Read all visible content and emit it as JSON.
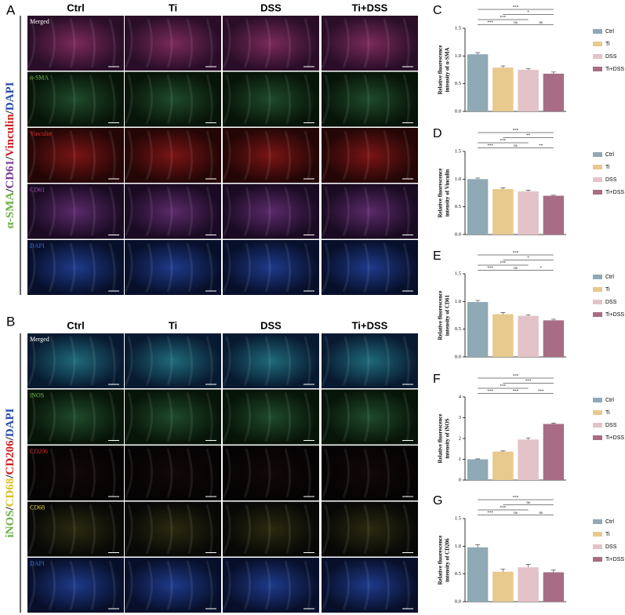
{
  "panels": [
    {
      "letter": "A",
      "columns": [
        "Ctrl",
        "Ti",
        "DSS",
        "Ti+DSS"
      ],
      "rows": [
        {
          "text": "Merged",
          "color": "#ffffff"
        },
        {
          "text": "α-SMA",
          "color": "#6fc04a"
        },
        {
          "text": "Vinculin",
          "color": "#e0302a"
        },
        {
          "text": "CD61",
          "color": "#a050b0"
        },
        {
          "text": "DAPI",
          "color": "#3a6ad0"
        }
      ],
      "side_label": [
        {
          "text": "α-SMA",
          "color": "#6aae45"
        },
        {
          "text": "/",
          "color": "#222222"
        },
        {
          "text": "CD61",
          "color": "#7a3a96"
        },
        {
          "text": "/",
          "color": "#222222"
        },
        {
          "text": "Vinculin",
          "color": "#cc1f1f"
        },
        {
          "text": "/",
          "color": "#222222"
        },
        {
          "text": "DAPI",
          "color": "#2a4ea8"
        }
      ]
    },
    {
      "letter": "B",
      "columns": [
        "Ctrl",
        "Ti",
        "DSS",
        "Ti+DSS"
      ],
      "rows": [
        {
          "text": "Merged",
          "color": "#ffffff"
        },
        {
          "text": "iNOS",
          "color": "#6fc04a"
        },
        {
          "text": "CD206",
          "color": "#e0302a"
        },
        {
          "text": "CD68",
          "color": "#e8d040"
        },
        {
          "text": "DAPI",
          "color": "#3a6ad0"
        }
      ],
      "side_label": [
        {
          "text": "iNOS",
          "color": "#6aae45"
        },
        {
          "text": "/",
          "color": "#222222"
        },
        {
          "text": "CD68",
          "color": "#d8c020"
        },
        {
          "text": "/",
          "color": "#222222"
        },
        {
          "text": "CD206",
          "color": "#cc1f1f"
        },
        {
          "text": "/",
          "color": "#222222"
        },
        {
          "text": "DAPI",
          "color": "#2a4ea8"
        }
      ]
    }
  ],
  "chart_data": [
    {
      "type": "bar",
      "letter": "C",
      "ylabel": [
        "Relative fluorescence",
        "intensity of α-SMA"
      ],
      "categories": [
        "Ctrl",
        "Ti",
        "DSS",
        "Ti+DSS"
      ],
      "colors": [
        "#8fa9b5",
        "#e8c98e",
        "#e3c3c8",
        "#a86c84"
      ],
      "values": [
        1.03,
        0.79,
        0.75,
        0.68
      ],
      "errors": [
        0.03,
        0.03,
        0.02,
        0.03
      ],
      "ylim": [
        0,
        1.5
      ],
      "yticks": [
        {
          "value": 0,
          "label": "0.0"
        },
        0.5,
        {
          "value": 1,
          "label": "1.0"
        },
        1.5
      ],
      "significance": [
        {
          "from": 0,
          "to": 3,
          "label": "***"
        },
        {
          "from": 1,
          "to": 3,
          "label": "*"
        },
        {
          "from": 0,
          "to": 2,
          "label": "***"
        },
        {
          "from": 0,
          "to": 1,
          "label": "***"
        },
        {
          "from": 1,
          "to": 2,
          "label": "ns"
        },
        {
          "from": 2,
          "to": 3,
          "label": "ns"
        }
      ]
    },
    {
      "type": "bar",
      "letter": "D",
      "ylabel": [
        "Relative fluorescence",
        "intensity of Vinculin"
      ],
      "categories": [
        "Ctrl",
        "Ti",
        "DSS",
        "Ti+DSS"
      ],
      "colors": [
        "#8fa9b5",
        "#e8c98e",
        "#e3c3c8",
        "#a86c84"
      ],
      "values": [
        1.0,
        0.82,
        0.78,
        0.7
      ],
      "errors": [
        0.02,
        0.02,
        0.02,
        0.01
      ],
      "ylim": [
        0,
        1.5
      ],
      "yticks": [
        {
          "value": 0,
          "label": "0.0"
        },
        0.5,
        {
          "value": 1,
          "label": "1.0"
        },
        1.5
      ],
      "significance": [
        {
          "from": 0,
          "to": 3,
          "label": "***"
        },
        {
          "from": 1,
          "to": 3,
          "label": "**"
        },
        {
          "from": 0,
          "to": 2,
          "label": "***"
        },
        {
          "from": 0,
          "to": 1,
          "label": "***"
        },
        {
          "from": 1,
          "to": 2,
          "label": "ns"
        },
        {
          "from": 2,
          "to": 3,
          "label": "**"
        }
      ]
    },
    {
      "type": "bar",
      "letter": "E",
      "ylabel": [
        "Relative fluorescence",
        "intensity of CD61"
      ],
      "categories": [
        "Ctrl",
        "Ti",
        "DSS",
        "Ti+DSS"
      ],
      "colors": [
        "#8fa9b5",
        "#e8c98e",
        "#e3c3c8",
        "#a86c84"
      ],
      "values": [
        0.99,
        0.77,
        0.74,
        0.66
      ],
      "errors": [
        0.03,
        0.03,
        0.02,
        0.02
      ],
      "ylim": [
        0,
        1.5
      ],
      "yticks": [
        {
          "value": 0,
          "label": "0.0"
        },
        0.5,
        {
          "value": 1,
          "label": "1.0"
        },
        1.5
      ],
      "significance": [
        {
          "from": 0,
          "to": 3,
          "label": "***"
        },
        {
          "from": 1,
          "to": 3,
          "label": "*"
        },
        {
          "from": 0,
          "to": 2,
          "label": "***"
        },
        {
          "from": 0,
          "to": 1,
          "label": "***"
        },
        {
          "from": 1,
          "to": 2,
          "label": "ns"
        },
        {
          "from": 2,
          "to": 3,
          "label": "*"
        }
      ]
    },
    {
      "type": "bar",
      "letter": "F",
      "ylabel": [
        "Relative fluorescence",
        "intensity of iNOS"
      ],
      "categories": [
        "Ctrl",
        "Ti",
        "DSS",
        "Ti+DSS"
      ],
      "colors": [
        "#8fa9b5",
        "#e8c98e",
        "#e3c3c8",
        "#a86c84"
      ],
      "values": [
        1.0,
        1.37,
        1.95,
        2.7
      ],
      "errors": [
        0.02,
        0.03,
        0.08,
        0.04
      ],
      "ylim": [
        0,
        4
      ],
      "yticks": [
        0,
        1,
        2,
        3,
        4
      ],
      "significance": [
        {
          "from": 0,
          "to": 3,
          "label": "***"
        },
        {
          "from": 1,
          "to": 3,
          "label": "***"
        },
        {
          "from": 0,
          "to": 2,
          "label": "***"
        },
        {
          "from": 0,
          "to": 1,
          "label": "***"
        },
        {
          "from": 1,
          "to": 2,
          "label": "***"
        },
        {
          "from": 2,
          "to": 3,
          "label": "***"
        }
      ]
    },
    {
      "type": "bar",
      "letter": "G",
      "ylabel": [
        "Relative fluorescence",
        "intensity of CD206"
      ],
      "categories": [
        "Ctrl",
        "Ti",
        "DSS",
        "Ti+DSS"
      ],
      "colors": [
        "#8fa9b5",
        "#e8c98e",
        "#e3c3c8",
        "#a86c84"
      ],
      "values": [
        0.98,
        0.54,
        0.62,
        0.53
      ],
      "errors": [
        0.05,
        0.05,
        0.05,
        0.04
      ],
      "ylim": [
        0,
        1.5
      ],
      "yticks": [
        {
          "value": 0,
          "label": "0.0"
        },
        0.5,
        {
          "value": 1,
          "label": "1.0"
        },
        1.5
      ],
      "significance": [
        {
          "from": 0,
          "to": 3,
          "label": "***"
        },
        {
          "from": 1,
          "to": 3,
          "label": "ns"
        },
        {
          "from": 0,
          "to": 2,
          "label": "***"
        },
        {
          "from": 0,
          "to": 1,
          "label": "***"
        },
        {
          "from": 1,
          "to": 2,
          "label": "ns"
        },
        {
          "from": 2,
          "to": 3,
          "label": "ns"
        }
      ]
    }
  ]
}
